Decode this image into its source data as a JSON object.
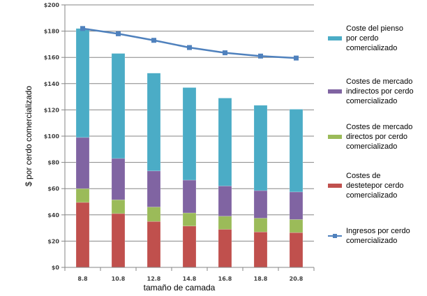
{
  "chart_data": {
    "type": "bar",
    "stacked": true,
    "title": "",
    "xlabel": "tamaño de camada",
    "ylabel": "$ por cerdo comercializado",
    "categories": [
      "8.8",
      "10.8",
      "12.8",
      "14.8",
      "16.8",
      "18.8",
      "20.8"
    ],
    "ylim": [
      0,
      200
    ],
    "yticks": [
      0,
      20,
      40,
      60,
      80,
      100,
      120,
      140,
      160,
      180,
      200
    ],
    "ytick_labels": [
      "$0",
      "$20",
      "$40",
      "$60",
      "$80",
      "$100",
      "$120",
      "$140",
      "$160",
      "$180",
      "$200"
    ],
    "grid": true,
    "legend_position": "right",
    "series": [
      {
        "name": "Costes de destetepor cerdo comercializado",
        "type": "bar",
        "color": "#c0504d",
        "values": [
          49.5,
          41,
          35,
          31.5,
          29,
          27,
          26.5
        ]
      },
      {
        "name": "Costes de mercado directos por cerdo comercializado",
        "type": "bar",
        "color": "#9bbb59",
        "values": [
          10.5,
          10.5,
          11,
          10,
          10,
          10.5,
          10
        ]
      },
      {
        "name": "Costes de mercado indirectos por cerdo comercializado",
        "type": "bar",
        "color": "#8064a2",
        "values": [
          39,
          31.5,
          27.5,
          25,
          23,
          21,
          21
        ]
      },
      {
        "name": "Coste del pienso por cerdo comercializado",
        "type": "bar",
        "color": "#4bacc6",
        "values": [
          83,
          80,
          74.5,
          70.5,
          67,
          65,
          63
        ]
      },
      {
        "name": "Ingresos por cerdo comercializado",
        "type": "line",
        "color": "#4f81bd",
        "values": [
          182,
          178,
          173,
          167.5,
          163.5,
          161,
          159.5
        ]
      }
    ]
  },
  "legend": {
    "items": [
      {
        "label": "Coste del pienso\npor cerdo\ncomercializado",
        "color": "#4bacc6",
        "kind": "bar"
      },
      {
        "label": "Costes de mercado\nindirectos por cerdo\ncomercializado",
        "color": "#8064a2",
        "kind": "bar"
      },
      {
        "label": "Costes de mercado\ndirectos por cerdo\ncomercializado",
        "color": "#9bbb59",
        "kind": "bar"
      },
      {
        "label": "Costes de\ndestetepor cerdo\ncomercializado",
        "color": "#c0504d",
        "kind": "bar"
      },
      {
        "label": "Ingresos por cerdo\ncomercializado",
        "color": "#4f81bd",
        "kind": "line"
      }
    ]
  }
}
